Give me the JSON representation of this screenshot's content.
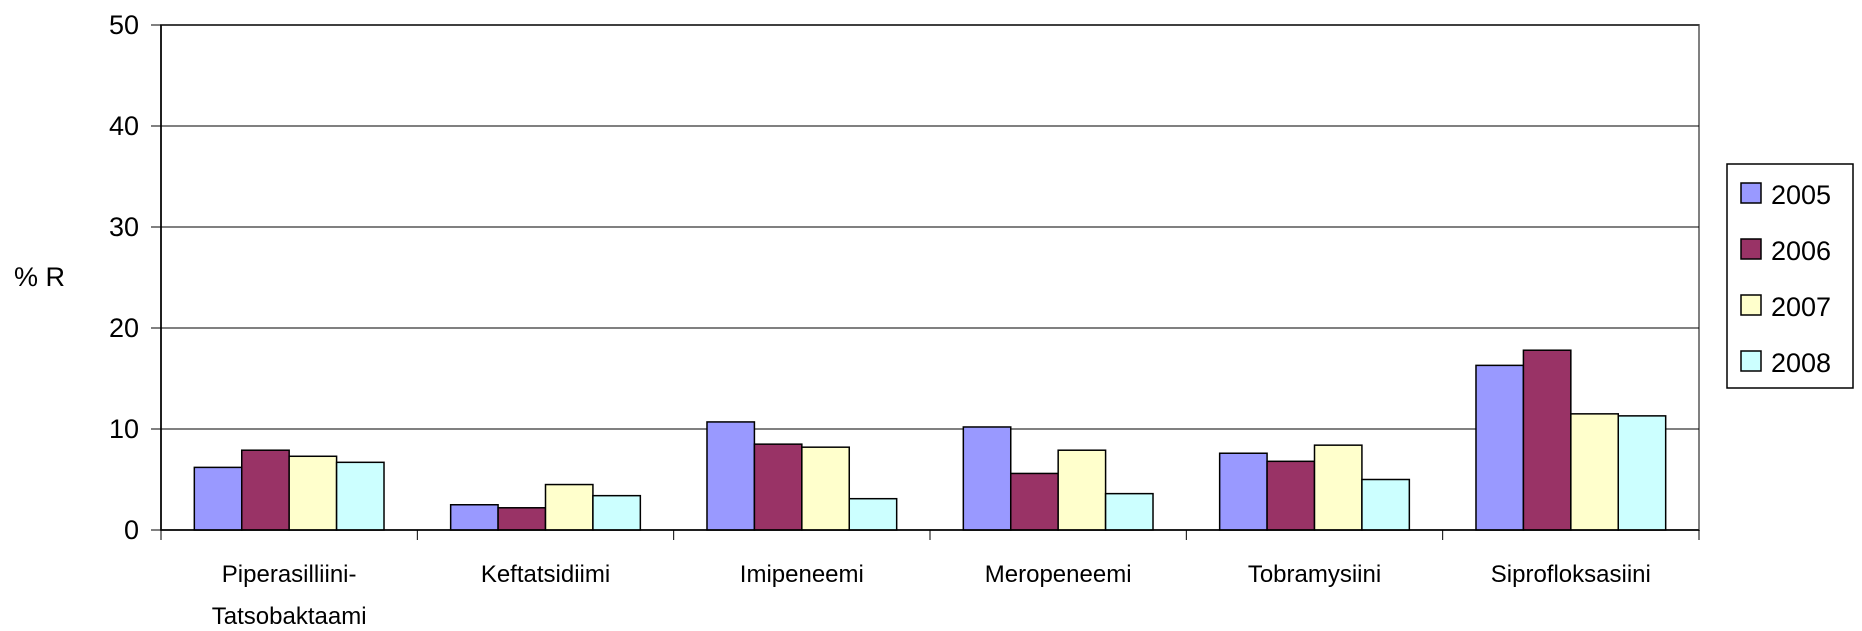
{
  "chart_data": {
    "type": "bar",
    "title": "",
    "xlabel": "",
    "ylabel": "% R",
    "ylim": [
      0,
      50
    ],
    "yticks": [
      0,
      10,
      20,
      30,
      40,
      50
    ],
    "grid": true,
    "legend_position": "right",
    "categories": [
      [
        "Piperasilliini-",
        "Tatsobaktaami"
      ],
      [
        "Keftatsidiimi"
      ],
      [
        "Imipeneemi"
      ],
      [
        "Meropeneemi"
      ],
      [
        "Tobramysiini"
      ],
      [
        "Siprofloksasiini"
      ]
    ],
    "series": [
      {
        "name": "2005",
        "color": "#9999FF",
        "values": [
          6.2,
          2.5,
          10.7,
          10.2,
          7.6,
          16.3
        ]
      },
      {
        "name": "2006",
        "color": "#993366",
        "values": [
          7.9,
          2.2,
          8.5,
          5.6,
          6.8,
          17.8
        ]
      },
      {
        "name": "2007",
        "color": "#FFFFCC",
        "values": [
          7.3,
          4.5,
          8.2,
          7.9,
          8.4,
          11.5
        ]
      },
      {
        "name": "2008",
        "color": "#CCFFFF",
        "values": [
          6.7,
          3.4,
          3.1,
          3.6,
          5.0,
          11.3
        ]
      }
    ]
  }
}
